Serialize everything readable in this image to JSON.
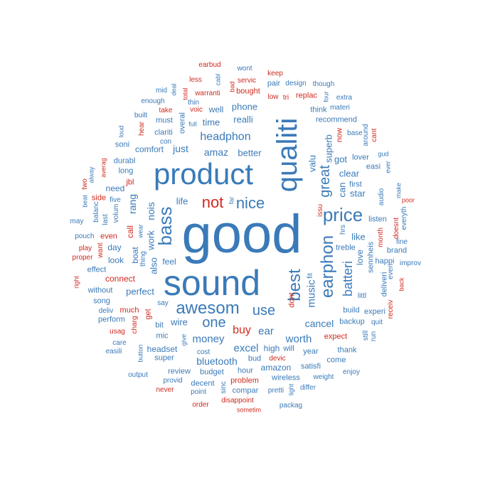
{
  "colors": {
    "blue": "#3a7ab8",
    "red": "#d12a1f"
  },
  "words": [
    {
      "t": "good",
      "c": "blue",
      "v": false
    },
    {
      "t": "sound",
      "c": "blue",
      "v": false
    },
    {
      "t": "product",
      "c": "blue",
      "v": false
    },
    {
      "t": "qualiti",
      "c": "blue",
      "v": true
    },
    {
      "t": "awesom",
      "c": "blue",
      "v": false
    },
    {
      "t": "nice",
      "c": "blue",
      "v": false
    },
    {
      "t": "not",
      "c": "red",
      "v": false
    },
    {
      "t": "bass",
      "c": "blue",
      "v": true
    },
    {
      "t": "price",
      "c": "blue",
      "v": false
    },
    {
      "t": "earphon",
      "c": "blue",
      "v": true
    },
    {
      "t": "best",
      "c": "blue",
      "v": true
    },
    {
      "t": "great",
      "c": "blue",
      "v": true
    },
    {
      "t": "use",
      "c": "blue",
      "v": false
    },
    {
      "t": "one",
      "c": "blue",
      "v": false
    },
    {
      "t": "headphon",
      "c": "blue",
      "v": false
    },
    {
      "t": "batteri",
      "c": "blue",
      "v": true
    },
    {
      "t": "buy",
      "c": "red",
      "v": false
    },
    {
      "t": "money",
      "c": "blue",
      "v": false
    },
    {
      "t": "ear",
      "c": "blue",
      "v": false
    },
    {
      "t": "worth",
      "c": "blue",
      "v": false
    },
    {
      "t": "excel",
      "c": "blue",
      "v": false
    },
    {
      "t": "music",
      "c": "blue",
      "v": true
    },
    {
      "t": "cancel",
      "c": "blue",
      "v": false
    },
    {
      "t": "bluetooth",
      "c": "blue",
      "v": false
    },
    {
      "t": "amaz",
      "c": "blue",
      "v": false
    },
    {
      "t": "phone",
      "c": "blue",
      "v": false
    },
    {
      "t": "realli",
      "c": "blue",
      "v": false
    },
    {
      "t": "nois",
      "c": "blue",
      "v": true
    },
    {
      "t": "rang",
      "c": "blue",
      "v": true
    },
    {
      "t": "just",
      "c": "blue",
      "v": false
    },
    {
      "t": "better",
      "c": "blue",
      "v": false
    },
    {
      "t": "valu",
      "c": "blue",
      "v": true
    },
    {
      "t": "superb",
      "c": "blue",
      "v": true
    },
    {
      "t": "clear",
      "c": "blue",
      "v": false
    },
    {
      "t": "star",
      "c": "blue",
      "v": false
    },
    {
      "t": "can",
      "c": "blue",
      "v": true
    },
    {
      "t": "got",
      "c": "blue",
      "v": false
    },
    {
      "t": "like",
      "c": "blue",
      "v": false
    },
    {
      "t": "love",
      "c": "blue",
      "v": true
    },
    {
      "t": "life",
      "c": "blue",
      "v": false
    },
    {
      "t": "wire",
      "c": "blue",
      "v": false
    },
    {
      "t": "work",
      "c": "blue",
      "v": true
    },
    {
      "t": "also",
      "c": "blue",
      "v": true
    },
    {
      "t": "perfect",
      "c": "blue",
      "v": false
    },
    {
      "t": "time",
      "c": "blue",
      "v": false
    },
    {
      "t": "well",
      "c": "blue",
      "v": false
    },
    {
      "t": "comfort",
      "c": "blue",
      "v": false
    },
    {
      "t": "connect",
      "c": "red",
      "v": false
    },
    {
      "t": "day",
      "c": "blue",
      "v": false
    },
    {
      "t": "look",
      "c": "blue",
      "v": false
    },
    {
      "t": "boat",
      "c": "blue",
      "v": true
    },
    {
      "t": "feel",
      "c": "blue",
      "v": false
    },
    {
      "t": "high",
      "c": "blue",
      "v": false
    },
    {
      "t": "amazon",
      "c": "blue",
      "v": false
    },
    {
      "t": "headset",
      "c": "blue",
      "v": false
    },
    {
      "t": "wireless",
      "c": "blue",
      "v": false
    },
    {
      "t": "expect",
      "c": "red",
      "v": false
    },
    {
      "t": "backup",
      "c": "blue",
      "v": false
    },
    {
      "t": "sennheis",
      "c": "blue",
      "v": true
    },
    {
      "t": "treble",
      "c": "blue",
      "v": false
    },
    {
      "t": "call",
      "c": "red",
      "v": true
    },
    {
      "t": "overal",
      "c": "blue",
      "v": true
    },
    {
      "t": "must",
      "c": "blue",
      "v": false
    },
    {
      "t": "clariti",
      "c": "blue",
      "v": false
    },
    {
      "t": "think",
      "c": "blue",
      "v": false
    },
    {
      "t": "recommend",
      "c": "blue",
      "v": false
    },
    {
      "t": "materi",
      "c": "blue",
      "v": false
    },
    {
      "t": "design",
      "c": "blue",
      "v": false
    },
    {
      "t": "though",
      "c": "blue",
      "v": false
    },
    {
      "t": "pair",
      "c": "blue",
      "v": false
    },
    {
      "t": "servic",
      "c": "red",
      "v": false
    },
    {
      "t": "bought",
      "c": "red",
      "v": false
    },
    {
      "t": "keep",
      "c": "red",
      "v": false
    },
    {
      "t": "wont",
      "c": "blue",
      "v": false
    },
    {
      "t": "earbud",
      "c": "red",
      "v": false
    },
    {
      "t": "less",
      "c": "red",
      "v": false
    },
    {
      "t": "cabl",
      "c": "blue",
      "v": true
    },
    {
      "t": "bad",
      "c": "red",
      "v": true
    },
    {
      "t": "low",
      "c": "red",
      "v": false
    },
    {
      "t": "tri",
      "c": "red",
      "v": false
    },
    {
      "t": "replac",
      "c": "red",
      "v": false
    },
    {
      "t": "four",
      "c": "blue",
      "v": true
    },
    {
      "t": "extra",
      "c": "blue",
      "v": false
    },
    {
      "t": "base",
      "c": "blue",
      "v": false
    },
    {
      "t": "now",
      "c": "red",
      "v": true
    },
    {
      "t": "around",
      "c": "blue",
      "v": true
    },
    {
      "t": "cant",
      "c": "red",
      "v": true
    },
    {
      "t": "gud",
      "c": "blue",
      "v": false
    },
    {
      "t": "first",
      "c": "blue",
      "v": false
    },
    {
      "t": "lover",
      "c": "blue",
      "v": false
    },
    {
      "t": "easi",
      "c": "blue",
      "v": false
    },
    {
      "t": "ever",
      "c": "blue",
      "v": true
    },
    {
      "t": "make",
      "c": "blue",
      "v": true
    },
    {
      "t": "audio",
      "c": "blue",
      "v": true
    },
    {
      "t": "listen",
      "c": "blue",
      "v": false
    },
    {
      "t": "everyth",
      "c": "blue",
      "v": true
    },
    {
      "t": "poor",
      "c": "red",
      "v": false
    },
    {
      "t": "doesnt",
      "c": "red",
      "v": true
    },
    {
      "t": "fine",
      "c": "blue",
      "v": false
    },
    {
      "t": "brand",
      "c": "blue",
      "v": false
    },
    {
      "t": "month",
      "c": "red",
      "v": true
    },
    {
      "t": "happi",
      "c": "blue",
      "v": false
    },
    {
      "t": "improv",
      "c": "blue",
      "v": false
    },
    {
      "t": "everi",
      "c": "blue",
      "v": true
    },
    {
      "t": "back",
      "c": "red",
      "v": true
    },
    {
      "t": "deliveri",
      "c": "blue",
      "v": true
    },
    {
      "t": "receiv",
      "c": "red",
      "v": true
    },
    {
      "t": "experi",
      "c": "blue",
      "v": false
    },
    {
      "t": "build",
      "c": "blue",
      "v": false
    },
    {
      "t": "quit",
      "c": "blue",
      "v": false
    },
    {
      "t": "run",
      "c": "blue",
      "v": true
    },
    {
      "t": "still",
      "c": "blue",
      "v": true
    },
    {
      "t": "thank",
      "c": "blue",
      "v": false
    },
    {
      "t": "come",
      "c": "blue",
      "v": false
    },
    {
      "t": "enjoy",
      "c": "blue",
      "v": false
    },
    {
      "t": "weight",
      "c": "blue",
      "v": false
    },
    {
      "t": "differ",
      "c": "blue",
      "v": false
    },
    {
      "t": "satisfi",
      "c": "blue",
      "v": false
    },
    {
      "t": "year",
      "c": "blue",
      "v": false
    },
    {
      "t": "will",
      "c": "blue",
      "v": false
    },
    {
      "t": "fit",
      "c": "blue",
      "v": true
    },
    {
      "t": "dont",
      "c": "red",
      "v": true
    },
    {
      "t": "littl",
      "c": "blue",
      "v": false
    },
    {
      "t": "issu",
      "c": "red",
      "v": true
    },
    {
      "t": "hrs",
      "c": "blue",
      "v": true
    },
    {
      "t": "far",
      "c": "blue",
      "v": true
    },
    {
      "t": "devic",
      "c": "red",
      "v": false
    },
    {
      "t": "bud",
      "c": "blue",
      "v": false
    },
    {
      "t": "hour",
      "c": "blue",
      "v": false
    },
    {
      "t": "problem",
      "c": "red",
      "v": false
    },
    {
      "t": "compar",
      "c": "blue",
      "v": false
    },
    {
      "t": "pretti",
      "c": "blue",
      "v": false
    },
    {
      "t": "light",
      "c": "blue",
      "v": true
    },
    {
      "t": "packag",
      "c": "blue",
      "v": false
    },
    {
      "t": "disappoint",
      "c": "red",
      "v": false
    },
    {
      "t": "sometim",
      "c": "red",
      "v": false
    },
    {
      "t": "order",
      "c": "red",
      "v": false
    },
    {
      "t": "sinc",
      "c": "blue",
      "v": true
    },
    {
      "t": "budget",
      "c": "blue",
      "v": false
    },
    {
      "t": "decent",
      "c": "blue",
      "v": false
    },
    {
      "t": "point",
      "c": "blue",
      "v": false
    },
    {
      "t": "cost",
      "c": "blue",
      "v": false
    },
    {
      "t": "review",
      "c": "blue",
      "v": false
    },
    {
      "t": "provid",
      "c": "blue",
      "v": false
    },
    {
      "t": "never",
      "c": "red",
      "v": false
    },
    {
      "t": "super",
      "c": "blue",
      "v": false
    },
    {
      "t": "give",
      "c": "blue",
      "v": true
    },
    {
      "t": "mic",
      "c": "blue",
      "v": false
    },
    {
      "t": "bit",
      "c": "blue",
      "v": false
    },
    {
      "t": "say",
      "c": "blue",
      "v": false
    },
    {
      "t": "output",
      "c": "blue",
      "v": false
    },
    {
      "t": "button",
      "c": "blue",
      "v": true
    },
    {
      "t": "easili",
      "c": "blue",
      "v": false
    },
    {
      "t": "care",
      "c": "blue",
      "v": false
    },
    {
      "t": "usag",
      "c": "red",
      "v": false
    },
    {
      "t": "charg",
      "c": "red",
      "v": true
    },
    {
      "t": "get",
      "c": "red",
      "v": true
    },
    {
      "t": "much",
      "c": "red",
      "v": false
    },
    {
      "t": "perform",
      "c": "blue",
      "v": false
    },
    {
      "t": "deliv",
      "c": "blue",
      "v": false
    },
    {
      "t": "song",
      "c": "blue",
      "v": false
    },
    {
      "t": "without",
      "c": "blue",
      "v": false
    },
    {
      "t": "effect",
      "c": "blue",
      "v": false
    },
    {
      "t": "right",
      "c": "red",
      "v": true
    },
    {
      "t": "proper",
      "c": "red",
      "v": false
    },
    {
      "t": "play",
      "c": "red",
      "v": false
    },
    {
      "t": "want",
      "c": "red",
      "v": true
    },
    {
      "t": "even",
      "c": "red",
      "v": false
    },
    {
      "t": "pouch",
      "c": "blue",
      "v": false
    },
    {
      "t": "may",
      "c": "blue",
      "v": false
    },
    {
      "t": "beat",
      "c": "blue",
      "v": true
    },
    {
      "t": "balanc",
      "c": "blue",
      "v": true
    },
    {
      "t": "last",
      "c": "blue",
      "v": true
    },
    {
      "t": "volum",
      "c": "blue",
      "v": true
    },
    {
      "t": "five",
      "c": "blue",
      "v": false
    },
    {
      "t": "side",
      "c": "red",
      "v": false
    },
    {
      "t": "two",
      "c": "red",
      "v": true
    },
    {
      "t": "alway",
      "c": "blue",
      "v": true
    },
    {
      "t": "averag",
      "c": "red",
      "v": true
    },
    {
      "t": "need",
      "c": "blue",
      "v": false
    },
    {
      "t": "jbl",
      "c": "red",
      "v": false
    },
    {
      "t": "long",
      "c": "blue",
      "v": false
    },
    {
      "t": "durabl",
      "c": "blue",
      "v": false
    },
    {
      "t": "soni",
      "c": "blue",
      "v": false
    },
    {
      "t": "loud",
      "c": "blue",
      "v": true
    },
    {
      "t": "hear",
      "c": "red",
      "v": true
    },
    {
      "t": "built",
      "c": "blue",
      "v": false
    },
    {
      "t": "take",
      "c": "red",
      "v": false
    },
    {
      "t": "con",
      "c": "blue",
      "v": false
    },
    {
      "t": "full",
      "c": "blue",
      "v": false
    },
    {
      "t": "voic",
      "c": "red",
      "v": false
    },
    {
      "t": "thin",
      "c": "blue",
      "v": false
    },
    {
      "t": "enough",
      "c": "blue",
      "v": false
    },
    {
      "t": "mid",
      "c": "blue",
      "v": false
    },
    {
      "t": "deal",
      "c": "blue",
      "v": true
    },
    {
      "t": "total",
      "c": "red",
      "v": true
    },
    {
      "t": "warranti",
      "c": "red",
      "v": false
    },
    {
      "t": "wear",
      "c": "blue",
      "v": true
    },
    {
      "t": "thing",
      "c": "blue",
      "v": true
    }
  ]
}
